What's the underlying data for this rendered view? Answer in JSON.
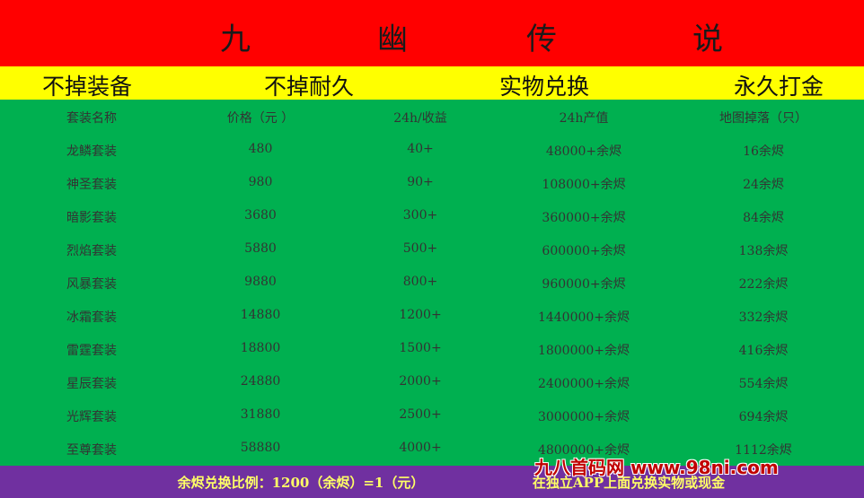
{
  "title": [
    "九",
    "幽",
    "传",
    "说"
  ],
  "features": [
    "不掉装备",
    "不掉耐久",
    "实物兑换",
    "永久打金"
  ],
  "table": {
    "headers": [
      "套装名称",
      "价格（元 ）",
      "24h/收益",
      "24h产值",
      "地图掉落（只）"
    ],
    "rows": [
      [
        "龙鳞套装",
        "480",
        "40+",
        "48000+余烬",
        "16余烬"
      ],
      [
        "神圣套装",
        "980",
        "90+",
        "108000+余烬",
        "24余烬"
      ],
      [
        "暗影套装",
        "3680",
        "300+",
        "360000+余烬",
        "84余烬"
      ],
      [
        "烈焰套装",
        "5880",
        "500+",
        "600000+余烬",
        "138余烬"
      ],
      [
        "风暴套装",
        "9880",
        "800+",
        "960000+余烬",
        "222余烬"
      ],
      [
        "冰霜套装",
        "14880",
        "1200+",
        "1440000+余烬",
        "332余烬"
      ],
      [
        "雷霆套装",
        "18800",
        "1500+",
        "1800000+余烬",
        "416余烬"
      ],
      [
        "星辰套装",
        "24880",
        "2000+",
        "2400000+余烬",
        "554余烬"
      ],
      [
        "光辉套装",
        "31880",
        "2500+",
        "3000000+余烬",
        "694余烬"
      ],
      [
        "至尊套装",
        "58880",
        "4000+",
        "4800000+余烬",
        "1112余烬"
      ]
    ]
  },
  "footer": {
    "ratio": "余烬兑换比例：1200（余烬）=1（元）",
    "exchange": "在独立APP上面兑换实物或现金"
  },
  "watermark": "九八首码网 www.98ni.com",
  "colors": {
    "title_bg": "#ff0000",
    "feature_bg": "#ffff00",
    "table_bg": "#00b050",
    "footer_bg": "#7030a0"
  }
}
